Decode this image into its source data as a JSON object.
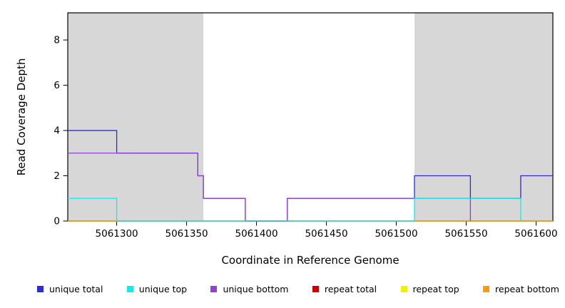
{
  "chart_data": {
    "type": "line",
    "step": true,
    "title": "",
    "xlabel": "Coordinate in Reference Genome",
    "ylabel": "Read Coverage Depth",
    "xlim": [
      5061265,
      5061612
    ],
    "ylim": [
      0,
      9.2
    ],
    "x_ticks": [
      5061300,
      5061350,
      5061400,
      5061450,
      5061500,
      5061550,
      5061600
    ],
    "y_ticks": [
      0,
      2,
      4,
      6,
      8
    ],
    "grid": false,
    "legend_position": "bottom",
    "shaded_regions": [
      {
        "x0": 5061265,
        "x1": 5061362,
        "color": "#d7d7d7"
      },
      {
        "x0": 5061513,
        "x1": 5061612,
        "color": "#d7d7d7"
      }
    ],
    "series": [
      {
        "name": "repeat total",
        "color": "#cc0000",
        "points": [
          [
            5061265,
            0
          ],
          [
            5061612,
            0
          ]
        ]
      },
      {
        "name": "repeat top",
        "color": "#f2f200",
        "points": [
          [
            5061265,
            0
          ],
          [
            5061612,
            0
          ]
        ]
      },
      {
        "name": "repeat bottom",
        "color": "#ff9d00",
        "points": [
          [
            5061265,
            0
          ],
          [
            5061612,
            0
          ]
        ]
      },
      {
        "name": "unique total",
        "color": "#2b2bd8",
        "points": [
          [
            5061265,
            4
          ],
          [
            5061300,
            3
          ],
          [
            5061358,
            2
          ],
          [
            5061362,
            1
          ],
          [
            5061392,
            0
          ],
          [
            5061422,
            1
          ],
          [
            5061513,
            2
          ],
          [
            5061553,
            1
          ],
          [
            5061589,
            2
          ],
          [
            5061612,
            2
          ]
        ]
      },
      {
        "name": "unique bottom",
        "color": "#9140d4",
        "points": [
          [
            5061265,
            3
          ],
          [
            5061358,
            2
          ],
          [
            5061362,
            1
          ],
          [
            5061392,
            0
          ],
          [
            5061422,
            1
          ],
          [
            5061553,
            0
          ]
        ]
      },
      {
        "name": "unique top",
        "color": "#17e8e8",
        "points": [
          [
            5061265,
            1
          ],
          [
            5061300,
            0
          ],
          [
            5061513,
            1
          ],
          [
            5061589,
            0
          ]
        ]
      }
    ],
    "legend": [
      {
        "label": "unique total",
        "color": "#2b2bd8"
      },
      {
        "label": "unique top",
        "color": "#17e8e8"
      },
      {
        "label": "unique bottom",
        "color": "#9140d4"
      },
      {
        "label": "repeat total",
        "color": "#cc0000"
      },
      {
        "label": "repeat top",
        "color": "#f2f200"
      },
      {
        "label": "repeat bottom",
        "color": "#ff9d00"
      }
    ]
  }
}
